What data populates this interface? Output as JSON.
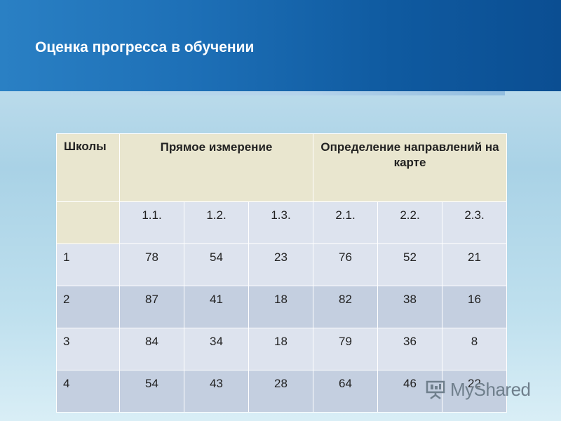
{
  "slide": {
    "title": "Оценка прогресса в обучении"
  },
  "table": {
    "header": {
      "col_schools": "Школы",
      "group_direct": "Прямое  измерение",
      "group_map": "Определение направлений на карте"
    },
    "subheaders": [
      "1.1.",
      "1.2.",
      "1.3.",
      "2.1.",
      "2.2.",
      "2.3."
    ],
    "rows": [
      {
        "school": "1",
        "values": [
          "78",
          "54",
          "23",
          "76",
          "52",
          "21"
        ]
      },
      {
        "school": "2",
        "values": [
          "87",
          "41",
          "18",
          "82",
          "38",
          "16"
        ]
      },
      {
        "school": "3",
        "values": [
          "84",
          "34",
          "18",
          "79",
          "36",
          "8"
        ]
      },
      {
        "school": "4",
        "values": [
          "54",
          "43",
          "28",
          "64",
          "46",
          "22"
        ]
      }
    ]
  },
  "watermark": {
    "text": "MyShared",
    "icon": "presentation-board-icon"
  },
  "colors": {
    "header_band": "#1d6fb6",
    "table_header_bg": "#e9e6cf",
    "row_light": "#dde3ee",
    "row_dark": "#c4cfe0"
  }
}
